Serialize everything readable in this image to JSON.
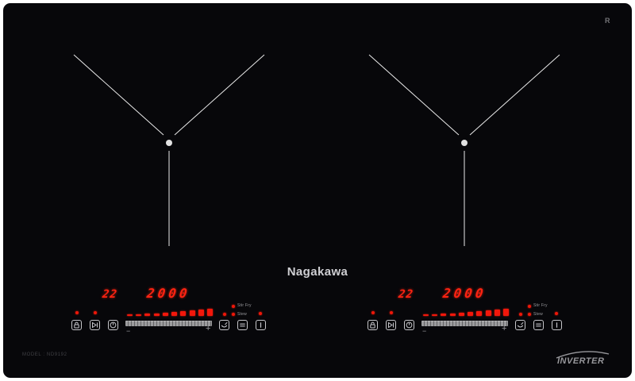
{
  "product": {
    "brand": "Nagakawa",
    "model_label": "MODEL : ND9192",
    "inverter_label": "INVERTER",
    "reg_mark": "R"
  },
  "colors": {
    "surface": "#07070a",
    "frame": "#ffffff",
    "led_red": "#ff2312",
    "indicator_red": "#ee1709",
    "icon_outline": "#c6c6ca",
    "burner_line": "#e9e9e9",
    "brand_text": "#cfcfd3",
    "slider_track": "#9c9c9e"
  },
  "power_bars": {
    "count": 10,
    "heights": [
      2,
      2,
      3,
      3,
      4,
      5,
      6,
      7,
      8,
      9
    ]
  },
  "icons": [
    "child-lock",
    "booster",
    "timer",
    "pan-mode",
    "keep-warm",
    "power"
  ],
  "panels": {
    "left": {
      "timer": "22",
      "power": "2000",
      "minus": "−",
      "plus": "+",
      "modes": {
        "stir_fry": "Stir Fry",
        "stew": "Stew"
      }
    },
    "right": {
      "timer": "22",
      "power": "2000",
      "minus": "−",
      "plus": "+",
      "modes": {
        "stir_fry": "Stir Fry",
        "stew": "Stew"
      }
    }
  }
}
